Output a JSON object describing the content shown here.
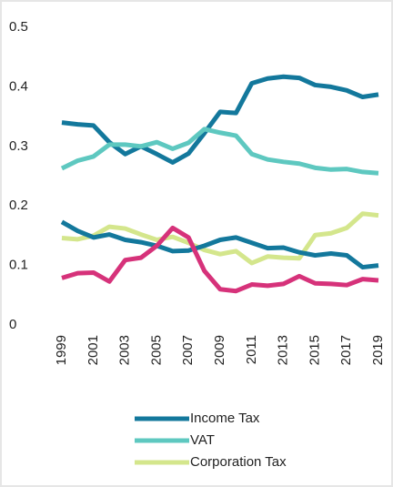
{
  "chart_data": {
    "type": "line",
    "x": [
      1999,
      2000,
      2001,
      2002,
      2003,
      2004,
      2005,
      2006,
      2007,
      2008,
      2009,
      2010,
      2011,
      2012,
      2013,
      2014,
      2015,
      2016,
      2017,
      2018,
      2019
    ],
    "xlim": [
      1999,
      2019
    ],
    "xticks": [
      1999,
      2001,
      2003,
      2005,
      2007,
      2009,
      2011,
      2013,
      2015,
      2017,
      2019
    ],
    "ylim": [
      0,
      0.5
    ],
    "yticks": [
      0,
      0.1,
      0.2,
      0.3,
      0.4,
      0.5
    ],
    "grid": false,
    "legend": "bottom",
    "series": [
      {
        "name": "Income Tax",
        "color": "#13789c",
        "values": [
          0.34,
          0.337,
          0.335,
          0.307,
          0.287,
          0.3,
          0.287,
          0.273,
          0.288,
          0.322,
          0.358,
          0.356,
          0.406,
          0.414,
          0.417,
          0.415,
          0.403,
          0.4,
          0.394,
          0.383,
          0.387
        ]
      },
      {
        "name": "VAT",
        "color": "#5ec8c0",
        "values": [
          0.263,
          0.276,
          0.283,
          0.303,
          0.303,
          0.3,
          0.307,
          0.296,
          0.306,
          0.329,
          0.323,
          0.318,
          0.287,
          0.278,
          0.274,
          0.271,
          0.264,
          0.261,
          0.262,
          0.257,
          0.255
        ]
      },
      {
        "name": "Corporation Tax",
        "color": "#d4e68c",
        "values": [
          0.146,
          0.144,
          0.15,
          0.165,
          0.162,
          0.152,
          0.143,
          0.148,
          0.138,
          0.126,
          0.119,
          0.124,
          0.104,
          0.115,
          0.113,
          0.112,
          0.151,
          0.154,
          0.163,
          0.187,
          0.184
        ]
      },
      {
        "color": "#13789c",
        "values": [
          0.173,
          0.158,
          0.147,
          0.152,
          0.143,
          0.139,
          0.133,
          0.124,
          0.125,
          0.133,
          0.143,
          0.147,
          0.138,
          0.129,
          0.13,
          0.122,
          0.117,
          0.12,
          0.117,
          0.097,
          0.1
        ]
      },
      {
        "color": "#d6327a",
        "values": [
          0.079,
          0.087,
          0.088,
          0.073,
          0.109,
          0.113,
          0.133,
          0.163,
          0.147,
          0.091,
          0.06,
          0.057,
          0.068,
          0.066,
          0.069,
          0.082,
          0.07,
          0.069,
          0.067,
          0.077,
          0.075
        ]
      }
    ]
  }
}
